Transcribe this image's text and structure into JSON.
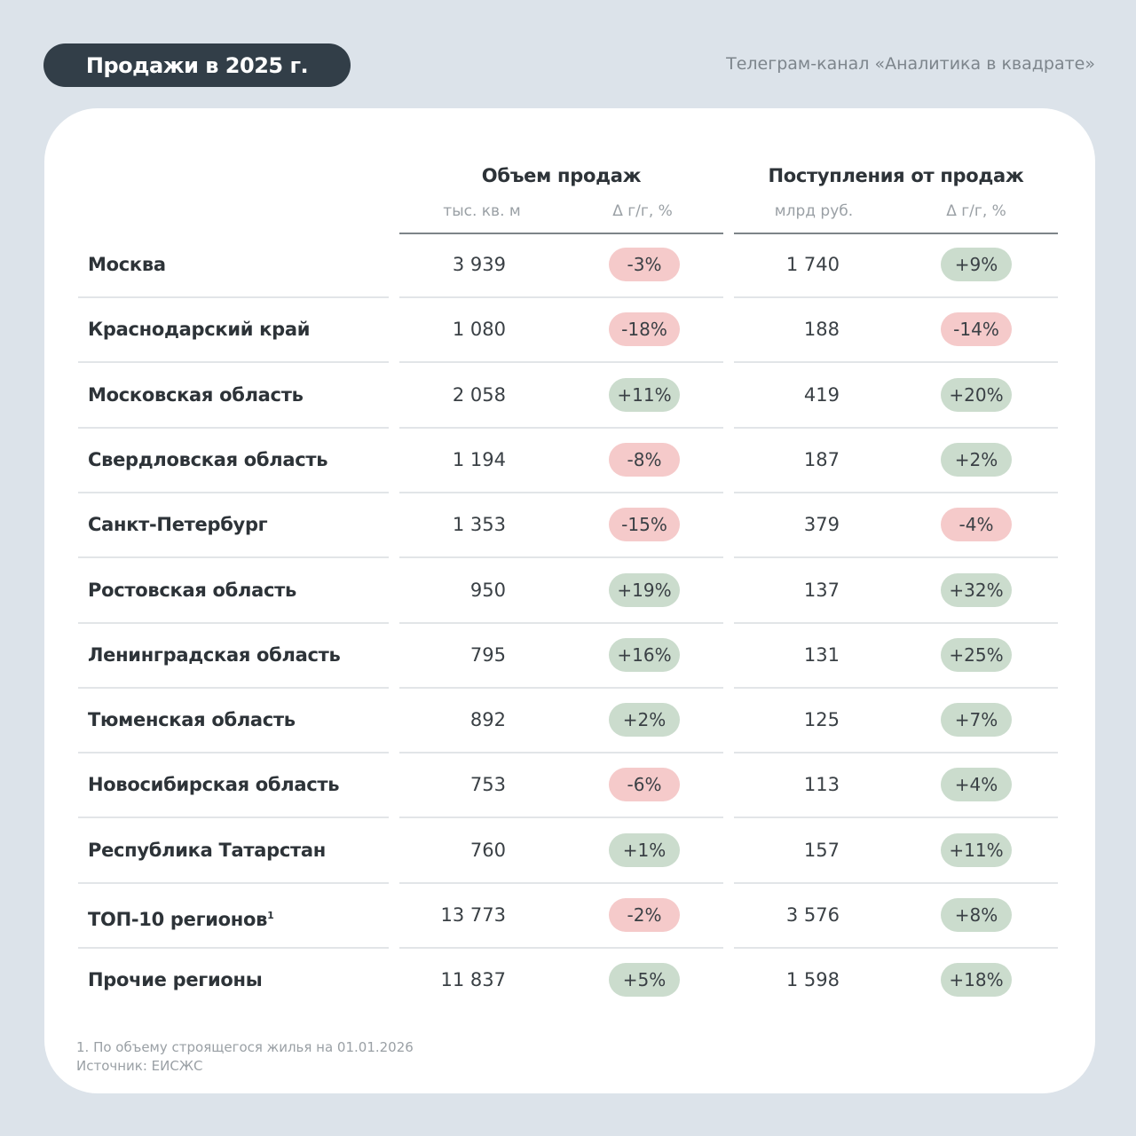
{
  "header": {
    "title": "Продажи в 2025 г.",
    "channel": "Телеграм-канал «Аналитика в квадрате»"
  },
  "colors": {
    "background": "#dce3ea",
    "title_pill": "#323e48",
    "negative": "#f5caca",
    "positive": "#cbdccd"
  },
  "table": {
    "groups": [
      {
        "title": "Объем продаж",
        "unit": "тыс. кв. м",
        "delta": "Δ г/г, %"
      },
      {
        "title": "Поступления от продаж",
        "unit": "млрд руб.",
        "delta": "Δ г/г, %"
      }
    ],
    "rows": [
      {
        "region": "Москва",
        "volume": "3 939",
        "volume_delta": "-3%",
        "revenue": "1 740",
        "revenue_delta": "+9%"
      },
      {
        "region": "Краснодарский край",
        "volume": "1 080",
        "volume_delta": "-18%",
        "revenue": "188",
        "revenue_delta": "-14%"
      },
      {
        "region": "Московская область",
        "volume": "2 058",
        "volume_delta": "+11%",
        "revenue": "419",
        "revenue_delta": "+20%"
      },
      {
        "region": "Свердловская область",
        "volume": "1 194",
        "volume_delta": "-8%",
        "revenue": "187",
        "revenue_delta": "+2%"
      },
      {
        "region": "Санкт-Петербург",
        "volume": "1 353",
        "volume_delta": "-15%",
        "revenue": "379",
        "revenue_delta": "-4%"
      },
      {
        "region": "Ростовская область",
        "volume": "950",
        "volume_delta": "+19%",
        "revenue": "137",
        "revenue_delta": "+32%"
      },
      {
        "region": "Ленинградская область",
        "volume": "795",
        "volume_delta": "+16%",
        "revenue": "131",
        "revenue_delta": "+25%"
      },
      {
        "region": "Тюменская область",
        "volume": "892",
        "volume_delta": "+2%",
        "revenue": "125",
        "revenue_delta": "+7%"
      },
      {
        "region": "Новосибирская область",
        "volume": "753",
        "volume_delta": "-6%",
        "revenue": "113",
        "revenue_delta": "+4%"
      },
      {
        "region": "Республика Татарстан",
        "volume": "760",
        "volume_delta": "+1%",
        "revenue": "157",
        "revenue_delta": "+11%"
      },
      {
        "region": "ТОП-10 регионов",
        "footnote_mark": "1",
        "volume": "13 773",
        "volume_delta": "-2%",
        "revenue": "3 576",
        "revenue_delta": "+8%"
      },
      {
        "region": "Прочие регионы",
        "volume": "11 837",
        "volume_delta": "+5%",
        "revenue": "1 598",
        "revenue_delta": "+18%"
      }
    ]
  },
  "footer": {
    "note": "1. По объему строящегося жилья на 01.01.2026",
    "source": "Источник: ЕИСЖС"
  }
}
